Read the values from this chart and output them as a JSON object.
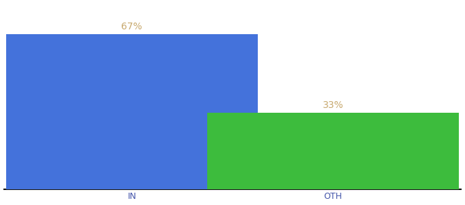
{
  "categories": [
    "IN",
    "OTH"
  ],
  "values": [
    67,
    33
  ],
  "bar_colors": [
    "#4472db",
    "#3dbc3d"
  ],
  "label_texts": [
    "67%",
    "33%"
  ],
  "label_color": "#c8a96e",
  "ylim": [
    0,
    80
  ],
  "background_color": "#ffffff",
  "tick_color": "#4455aa",
  "label_fontsize": 10,
  "tick_fontsize": 9,
  "bar_width": 0.55,
  "bar_positions": [
    0.28,
    0.72
  ],
  "spine_color": "#111111",
  "xlim": [
    0,
    1
  ]
}
